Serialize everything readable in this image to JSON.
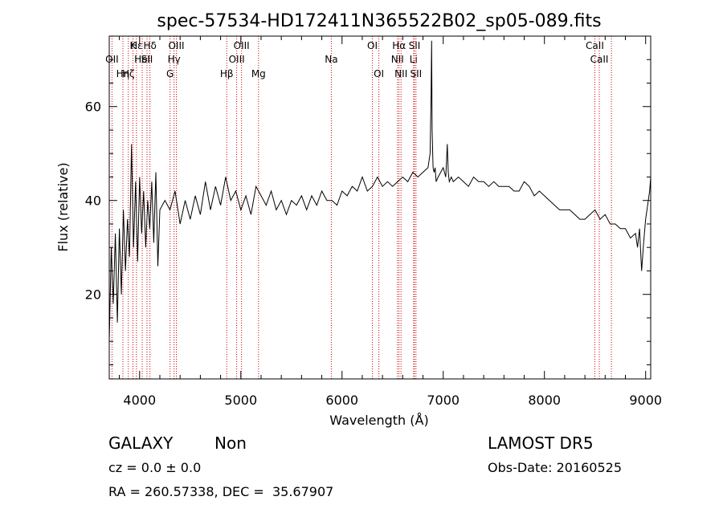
{
  "chart_data": {
    "type": "line",
    "title": "spec-57534-HD172411N365522B02_sp05-089.fits",
    "xlabel": "Wavelength (Å)",
    "ylabel": "Flux (relative)",
    "xlim": [
      3700,
      9050
    ],
    "ylim": [
      2,
      75
    ],
    "x_ticks": [
      4000,
      5000,
      6000,
      7000,
      8000,
      9000
    ],
    "y_ticks": [
      20,
      40,
      60
    ],
    "grid": false,
    "series": [
      {
        "x": [
          3700,
          3720,
          3740,
          3760,
          3780,
          3800,
          3820,
          3840,
          3860,
          3880,
          3900,
          3920,
          3940,
          3960,
          3980,
          4000,
          4020,
          4040,
          4060,
          4080,
          4100,
          4120,
          4140,
          4160,
          4180,
          4200,
          4250,
          4300,
          4350,
          4400,
          4450,
          4500,
          4550,
          4600,
          4650,
          4700,
          4750,
          4800,
          4850,
          4900,
          4950,
          5000,
          5050,
          5100,
          5150,
          5200,
          5250,
          5300,
          5350,
          5400,
          5450,
          5500,
          5550,
          5600,
          5650,
          5700,
          5750,
          5800,
          5850,
          5900,
          5950,
          6000,
          6050,
          6100,
          6150,
          6200,
          6250,
          6300,
          6350,
          6400,
          6450,
          6500,
          6550,
          6600,
          6650,
          6700,
          6750,
          6800,
          6850,
          6870,
          6880,
          6885,
          6890,
          6900,
          6910,
          6920,
          6930,
          6950,
          6975,
          7000,
          7025,
          7040,
          7050,
          7060,
          7080,
          7100,
          7150,
          7200,
          7250,
          7300,
          7350,
          7400,
          7450,
          7500,
          7550,
          7600,
          7650,
          7700,
          7750,
          7800,
          7850,
          7900,
          7950,
          8000,
          8050,
          8100,
          8150,
          8200,
          8250,
          8300,
          8350,
          8400,
          8450,
          8500,
          8550,
          8600,
          8650,
          8700,
          8750,
          8800,
          8850,
          8900,
          8920,
          8940,
          8960,
          8980,
          9000,
          9020,
          9040,
          9050
        ],
        "y": [
          10,
          30,
          18,
          33,
          14,
          34,
          20,
          38,
          25,
          36,
          28,
          52,
          30,
          44,
          27,
          45,
          33,
          42,
          30,
          40,
          34,
          44,
          31,
          46,
          26,
          38,
          40,
          38,
          42,
          35,
          40,
          36,
          41,
          37,
          44,
          38,
          43,
          39,
          45,
          40,
          42,
          38,
          41,
          37,
          43,
          41,
          39,
          42,
          38,
          40,
          37,
          40,
          39,
          41,
          38,
          41,
          39,
          42,
          40,
          40,
          39,
          42,
          41,
          43,
          42,
          45,
          42,
          43,
          45,
          43,
          44,
          43,
          44,
          45,
          44,
          46,
          45,
          46,
          47,
          50,
          62,
          74,
          55,
          47,
          46,
          47,
          44,
          45,
          46,
          47,
          45,
          52,
          46,
          44,
          45,
          44,
          45,
          44,
          43,
          45,
          44,
          44,
          43,
          44,
          43,
          43,
          43,
          42,
          42,
          44,
          43,
          41,
          42,
          41,
          40,
          39,
          38,
          38,
          38,
          37,
          36,
          36,
          37,
          38,
          36,
          37,
          35,
          35,
          34,
          34,
          32,
          33,
          30,
          34,
          25,
          31,
          36,
          39,
          42,
          45
        ],
        "stroke_color": "#000000"
      }
    ],
    "line_markers": [
      {
        "x": 3727,
        "label": "OII",
        "row": 2
      },
      {
        "x": 3835,
        "label": "Hη",
        "row": 3
      },
      {
        "x": 3889,
        "label": "Hζ",
        "row": 3
      },
      {
        "x": 3934,
        "label": "K",
        "row": 1
      },
      {
        "x": 3969,
        "label": "Hε",
        "row": 1
      },
      {
        "x": 4026,
        "label": "HeI",
        "row": 2
      },
      {
        "x": 4102,
        "label": "Hδ",
        "row": 1
      },
      {
        "x": 4073,
        "label": "SII",
        "row": 2
      },
      {
        "x": 4301,
        "label": "G",
        "row": 3
      },
      {
        "x": 4340,
        "label": "Hγ",
        "row": 2
      },
      {
        "x": 4363,
        "label": "OIII",
        "row": 1
      },
      {
        "x": 4861,
        "label": "Hβ",
        "row": 3
      },
      {
        "x": 4959,
        "label": "OIII",
        "row": 2
      },
      {
        "x": 5007,
        "label": "OIII",
        "row": 1
      },
      {
        "x": 5175,
        "label": "Mg",
        "row": 3
      },
      {
        "x": 5894,
        "label": "Na",
        "row": 2
      },
      {
        "x": 6300,
        "label": "OI",
        "row": 1
      },
      {
        "x": 6364,
        "label": "OI",
        "row": 3
      },
      {
        "x": 6548,
        "label": "NII",
        "row": 2
      },
      {
        "x": 6563,
        "label": "Hα",
        "row": 1
      },
      {
        "x": 6583,
        "label": "NII",
        "row": 3
      },
      {
        "x": 6716,
        "label": "SII",
        "row": 1
      },
      {
        "x": 6707,
        "label": "Li",
        "row": 2
      },
      {
        "x": 6731,
        "label": "SII",
        "row": 3
      },
      {
        "x": 8498,
        "label": "CaII",
        "row": 1
      },
      {
        "x": 8542,
        "label": "CaII",
        "row": 2
      },
      {
        "x": 8662,
        "label": "",
        "row": 0
      }
    ],
    "marker_color": "#cc0000"
  },
  "info": {
    "class_label": "GALAXY",
    "subclass_label": "Non",
    "survey_label": "LAMOST DR5",
    "cz_text": "cz = 0.0 ± 0.0",
    "obs_date_text": "Obs-Date: 20160525",
    "radec_text": "RA = 260.57338, DEC =  35.67907"
  }
}
